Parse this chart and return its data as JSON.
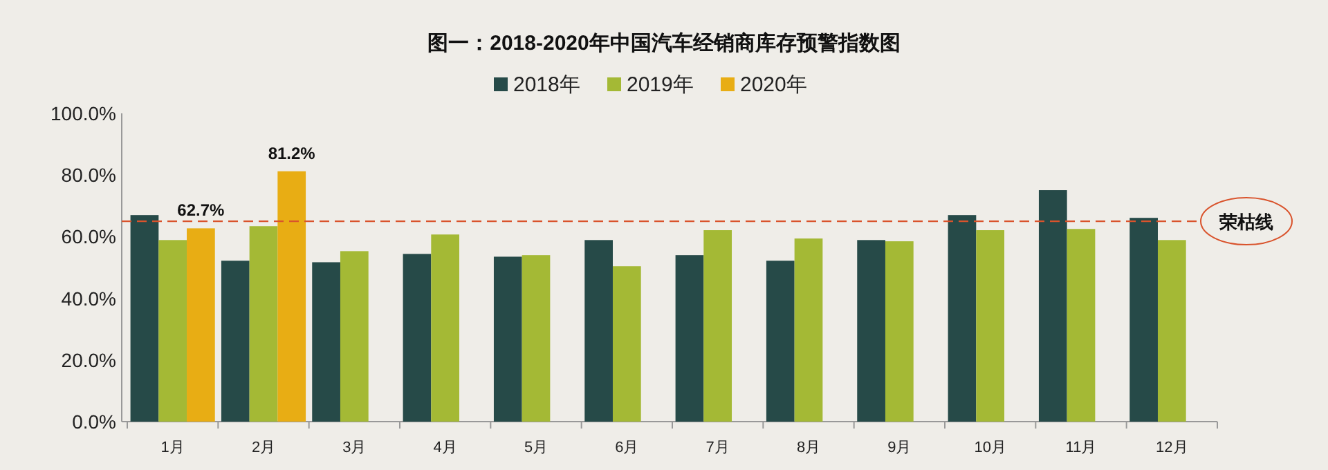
{
  "chart_data": {
    "type": "bar",
    "title": "图一：2018-2020年中国汽车经销商库存预警指数图",
    "categories": [
      "1月",
      "2月",
      "3月",
      "4月",
      "5月",
      "6月",
      "7月",
      "8月",
      "9月",
      "10月",
      "11月",
      "12月"
    ],
    "series": [
      {
        "name": "2018年",
        "color": "#264a48",
        "values": [
          67.0,
          52.2,
          51.7,
          54.4,
          53.5,
          58.9,
          54.0,
          52.2,
          58.9,
          67.0,
          75.1,
          66.1
        ]
      },
      {
        "name": "2019年",
        "color": "#a4b935",
        "values": [
          58.9,
          63.4,
          55.3,
          60.7,
          54.0,
          50.4,
          62.1,
          59.4,
          58.5,
          62.1,
          62.5,
          58.9
        ]
      },
      {
        "name": "2020年",
        "color": "#e8ad14",
        "values": [
          62.7,
          81.2,
          null,
          null,
          null,
          null,
          null,
          null,
          null,
          null,
          null,
          null
        ],
        "value_labels": [
          "62.7%",
          "81.2%",
          null,
          null,
          null,
          null,
          null,
          null,
          null,
          null,
          null,
          null
        ]
      }
    ],
    "ylim": [
      0,
      100
    ],
    "yticks": [
      {
        "value": 0,
        "label": "0.0%"
      },
      {
        "value": 20,
        "label": "20.0%"
      },
      {
        "value": 40,
        "label": "40.0%"
      },
      {
        "value": 60,
        "label": "60.0%"
      },
      {
        "value": 80,
        "label": "80.0%"
      },
      {
        "value": 100,
        "label": "100.0%"
      }
    ],
    "ref_lines": [
      {
        "axis": "y",
        "value": 65,
        "label": "荣枯线",
        "color": "#d9532c",
        "line_style": "dashed"
      }
    ],
    "legend": "top",
    "grid": false
  }
}
